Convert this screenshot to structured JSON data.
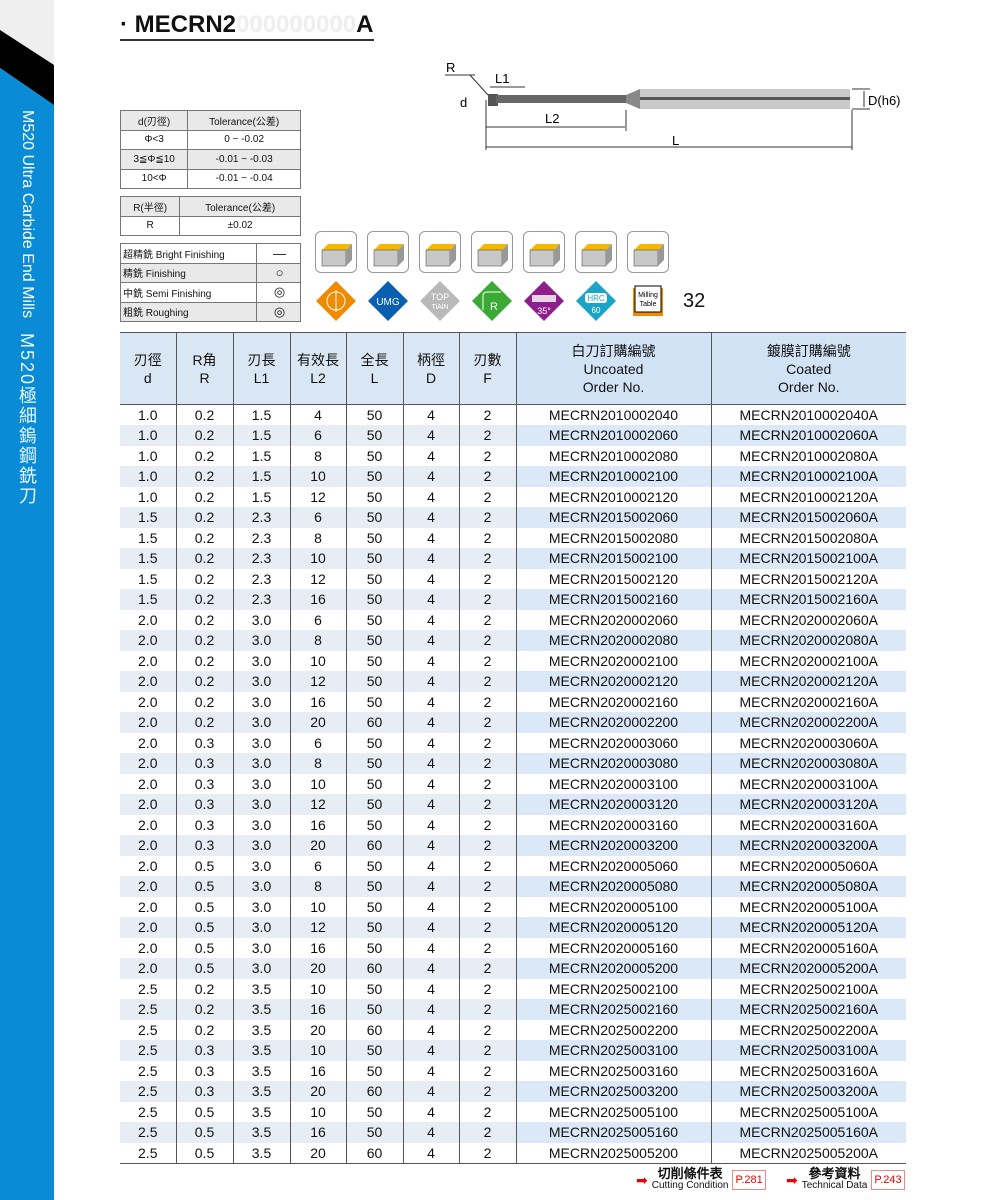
{
  "sidebar": {
    "title_en": "M520 Ultra Carbide End Mills",
    "title_zh": "M520極細鎢鋼銑刀"
  },
  "title": {
    "prefix": "· MECRN2",
    "ghost": "000000000",
    "suffix": "A"
  },
  "diagram": {
    "labels": {
      "r": "R",
      "l1": "L1",
      "d": "d",
      "l2": "L2",
      "l": "L",
      "dh6": "D(h6)"
    }
  },
  "tolerance_d": {
    "headers": [
      "d(刃徑)",
      "Tolerance(公差)"
    ],
    "rows": [
      [
        "Φ<3",
        "0 ~ -0.02"
      ],
      [
        "3≦Φ≦10",
        "-0.01 ~ -0.03"
      ],
      [
        "10<Φ",
        "-0.01 ~ -0.04"
      ]
    ]
  },
  "tolerance_r": {
    "headers": [
      "R(半徑)",
      "Tolerance(公差)"
    ],
    "rows": [
      [
        "R",
        "±0.02"
      ]
    ]
  },
  "finishing": [
    {
      "label": "超精銑 Bright Finishing",
      "symbol": "—"
    },
    {
      "label": "精銑 Finishing",
      "symbol": "○"
    },
    {
      "label": "中銑 Semi Finishing",
      "symbol": "◎"
    },
    {
      "label": "粗銑 Roughing",
      "symbol": "◎"
    }
  ],
  "application_icons": [
    "face-milling-icon",
    "slot-milling-icon",
    "shoulder-milling-icon",
    "helical-milling-icon",
    "drilling-icon",
    "profile-milling-icon",
    "ramping-icon"
  ],
  "badges": {
    "umg": "UMG",
    "top": "TOP",
    "tialn": "TiAlN",
    "r": "R",
    "helix": "35°",
    "hrc": "HRC",
    "hrc_val": "60",
    "milling": "Milling",
    "table": "Table",
    "page_ref": "32",
    "colors": {
      "orange": "#f08a00",
      "blue": "#0b5fb0",
      "grey": "#b9b9b9",
      "green": "#3aaa35",
      "purple": "#8c1f8c",
      "teal": "#1aa4c8"
    }
  },
  "table": {
    "headers": [
      [
        "刃徑",
        "d"
      ],
      [
        "R角",
        "R"
      ],
      [
        "刃長",
        "L1"
      ],
      [
        "有效長",
        "L2"
      ],
      [
        "全長",
        "L"
      ],
      [
        "柄徑",
        "D"
      ],
      [
        "刃數",
        "F"
      ],
      [
        "白刀訂購編號",
        "Uncoated",
        "Order No."
      ],
      [
        "鍍膜訂購編號",
        "Coated",
        "Order No."
      ]
    ],
    "rows": [
      [
        "1.0",
        "0.2",
        "1.5",
        "4",
        "50",
        "4",
        "2",
        "MECRN2010002040",
        "MECRN2010002040A"
      ],
      [
        "1.0",
        "0.2",
        "1.5",
        "6",
        "50",
        "4",
        "2",
        "MECRN2010002060",
        "MECRN2010002060A"
      ],
      [
        "1.0",
        "0.2",
        "1.5",
        "8",
        "50",
        "4",
        "2",
        "MECRN2010002080",
        "MECRN2010002080A"
      ],
      [
        "1.0",
        "0.2",
        "1.5",
        "10",
        "50",
        "4",
        "2",
        "MECRN2010002100",
        "MECRN2010002100A"
      ],
      [
        "1.0",
        "0.2",
        "1.5",
        "12",
        "50",
        "4",
        "2",
        "MECRN2010002120",
        "MECRN2010002120A"
      ],
      [
        "1.5",
        "0.2",
        "2.3",
        "6",
        "50",
        "4",
        "2",
        "MECRN2015002060",
        "MECRN2015002060A"
      ],
      [
        "1.5",
        "0.2",
        "2.3",
        "8",
        "50",
        "4",
        "2",
        "MECRN2015002080",
        "MECRN2015002080A"
      ],
      [
        "1.5",
        "0.2",
        "2.3",
        "10",
        "50",
        "4",
        "2",
        "MECRN2015002100",
        "MECRN2015002100A"
      ],
      [
        "1.5",
        "0.2",
        "2.3",
        "12",
        "50",
        "4",
        "2",
        "MECRN2015002120",
        "MECRN2015002120A"
      ],
      [
        "1.5",
        "0.2",
        "2.3",
        "16",
        "50",
        "4",
        "2",
        "MECRN2015002160",
        "MECRN2015002160A"
      ],
      [
        "2.0",
        "0.2",
        "3.0",
        "6",
        "50",
        "4",
        "2",
        "MECRN2020002060",
        "MECRN2020002060A"
      ],
      [
        "2.0",
        "0.2",
        "3.0",
        "8",
        "50",
        "4",
        "2",
        "MECRN2020002080",
        "MECRN2020002080A"
      ],
      [
        "2.0",
        "0.2",
        "3.0",
        "10",
        "50",
        "4",
        "2",
        "MECRN2020002100",
        "MECRN2020002100A"
      ],
      [
        "2.0",
        "0.2",
        "3.0",
        "12",
        "50",
        "4",
        "2",
        "MECRN2020002120",
        "MECRN2020002120A"
      ],
      [
        "2.0",
        "0.2",
        "3.0",
        "16",
        "50",
        "4",
        "2",
        "MECRN2020002160",
        "MECRN2020002160A"
      ],
      [
        "2.0",
        "0.2",
        "3.0",
        "20",
        "60",
        "4",
        "2",
        "MECRN2020002200",
        "MECRN2020002200A"
      ],
      [
        "2.0",
        "0.3",
        "3.0",
        "6",
        "50",
        "4",
        "2",
        "MECRN2020003060",
        "MECRN2020003060A"
      ],
      [
        "2.0",
        "0.3",
        "3.0",
        "8",
        "50",
        "4",
        "2",
        "MECRN2020003080",
        "MECRN2020003080A"
      ],
      [
        "2.0",
        "0.3",
        "3.0",
        "10",
        "50",
        "4",
        "2",
        "MECRN2020003100",
        "MECRN2020003100A"
      ],
      [
        "2.0",
        "0.3",
        "3.0",
        "12",
        "50",
        "4",
        "2",
        "MECRN2020003120",
        "MECRN2020003120A"
      ],
      [
        "2.0",
        "0.3",
        "3.0",
        "16",
        "50",
        "4",
        "2",
        "MECRN2020003160",
        "MECRN2020003160A"
      ],
      [
        "2.0",
        "0.3",
        "3.0",
        "20",
        "60",
        "4",
        "2",
        "MECRN2020003200",
        "MECRN2020003200A"
      ],
      [
        "2.0",
        "0.5",
        "3.0",
        "6",
        "50",
        "4",
        "2",
        "MECRN2020005060",
        "MECRN2020005060A"
      ],
      [
        "2.0",
        "0.5",
        "3.0",
        "8",
        "50",
        "4",
        "2",
        "MECRN2020005080",
        "MECRN2020005080A"
      ],
      [
        "2.0",
        "0.5",
        "3.0",
        "10",
        "50",
        "4",
        "2",
        "MECRN2020005100",
        "MECRN2020005100A"
      ],
      [
        "2.0",
        "0.5",
        "3.0",
        "12",
        "50",
        "4",
        "2",
        "MECRN2020005120",
        "MECRN2020005120A"
      ],
      [
        "2.0",
        "0.5",
        "3.0",
        "16",
        "50",
        "4",
        "2",
        "MECRN2020005160",
        "MECRN2020005160A"
      ],
      [
        "2.0",
        "0.5",
        "3.0",
        "20",
        "60",
        "4",
        "2",
        "MECRN2020005200",
        "MECRN2020005200A"
      ],
      [
        "2.5",
        "0.2",
        "3.5",
        "10",
        "50",
        "4",
        "2",
        "MECRN2025002100",
        "MECRN2025002100A"
      ],
      [
        "2.5",
        "0.2",
        "3.5",
        "16",
        "50",
        "4",
        "2",
        "MECRN2025002160",
        "MECRN2025002160A"
      ],
      [
        "2.5",
        "0.2",
        "3.5",
        "20",
        "60",
        "4",
        "2",
        "MECRN2025002200",
        "MECRN2025002200A"
      ],
      [
        "2.5",
        "0.3",
        "3.5",
        "10",
        "50",
        "4",
        "2",
        "MECRN2025003100",
        "MECRN2025003100A"
      ],
      [
        "2.5",
        "0.3",
        "3.5",
        "16",
        "50",
        "4",
        "2",
        "MECRN2025003160",
        "MECRN2025003160A"
      ],
      [
        "2.5",
        "0.3",
        "3.5",
        "20",
        "60",
        "4",
        "2",
        "MECRN2025003200",
        "MECRN2025003200A"
      ],
      [
        "2.5",
        "0.5",
        "3.5",
        "10",
        "50",
        "4",
        "2",
        "MECRN2025005100",
        "MECRN2025005100A"
      ],
      [
        "2.5",
        "0.5",
        "3.5",
        "16",
        "50",
        "4",
        "2",
        "MECRN2025005160",
        "MECRN2025005160A"
      ],
      [
        "2.5",
        "0.5",
        "3.5",
        "20",
        "60",
        "4",
        "2",
        "MECRN2025005200",
        "MECRN2025005200A"
      ]
    ]
  },
  "footer": [
    {
      "zh": "切削條件表",
      "en": "Cutting Condition",
      "page": "P.281"
    },
    {
      "zh": "參考資料",
      "en": "Technical Data",
      "page": "P.243"
    }
  ]
}
